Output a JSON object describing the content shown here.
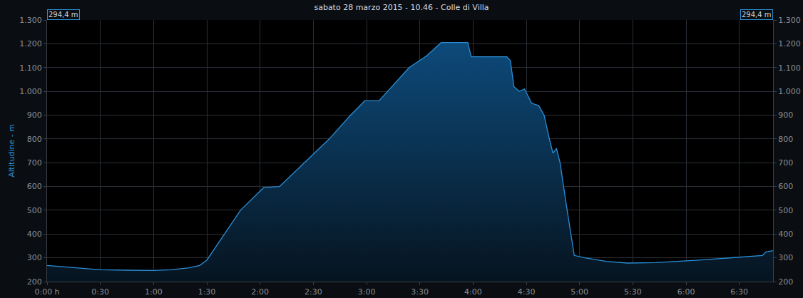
{
  "chart_data": {
    "type": "area",
    "title": "sabato 28 marzo 2015 - 10.46 - Colle di Villa",
    "y_label": "Altitudine - m",
    "annotations": [
      "294,4 m",
      "294,4 m"
    ],
    "color": "#2a8fd8",
    "grid": true,
    "x": [
      0,
      15,
      30,
      45,
      60,
      70,
      80,
      86,
      90,
      109,
      122,
      131,
      145,
      159,
      171,
      179,
      187,
      204,
      214,
      222,
      237,
      239,
      259,
      261,
      263,
      266,
      269,
      273,
      277,
      280,
      283,
      285,
      287,
      289,
      293,
      297,
      303,
      315,
      327,
      343,
      367,
      387,
      403,
      405,
      409
    ],
    "values": [
      268,
      258,
      250,
      248,
      247,
      250,
      258,
      268,
      290,
      500,
      595,
      600,
      700,
      800,
      900,
      960,
      960,
      1100,
      1150,
      1205,
      1205,
      1145,
      1145,
      1130,
      1020,
      1000,
      1010,
      950,
      940,
      900,
      800,
      740,
      760,
      700,
      500,
      310,
      300,
      285,
      278,
      280,
      290,
      300,
      310,
      325,
      330
    ],
    "xlim": [
      0,
      409
    ],
    "xticks": [
      {
        "value": 0,
        "label": "0:00 h"
      },
      {
        "value": 30,
        "label": "0:30"
      },
      {
        "value": 60,
        "label": "1:00"
      },
      {
        "value": 90,
        "label": "1:30"
      },
      {
        "value": 120,
        "label": "2:00"
      },
      {
        "value": 150,
        "label": "2:30"
      },
      {
        "value": 180,
        "label": "3:00"
      },
      {
        "value": 210,
        "label": "3:30"
      },
      {
        "value": 240,
        "label": "4:00"
      },
      {
        "value": 270,
        "label": "4:30"
      },
      {
        "value": 300,
        "label": "5:00"
      },
      {
        "value": 330,
        "label": "5:30"
      },
      {
        "value": 360,
        "label": "6:00"
      },
      {
        "value": 390,
        "label": "6:30"
      }
    ],
    "ylim": [
      200,
      1300
    ],
    "yticks": [
      200,
      300,
      400,
      500,
      600,
      700,
      800,
      900,
      {
        "value": 1000,
        "label": "1.000"
      },
      {
        "value": 1100,
        "label": "1.100"
      },
      {
        "value": 1200,
        "label": "1.200"
      },
      {
        "value": 1300,
        "label": "1.300"
      }
    ]
  }
}
